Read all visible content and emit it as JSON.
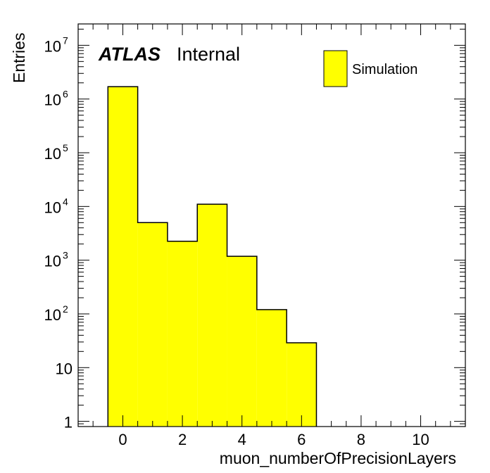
{
  "colors": {
    "fill": "#ffff00",
    "line": "#000000",
    "background": "#ffffff"
  },
  "label": {
    "experiment": "ATLAS",
    "status": "Internal"
  },
  "chart_data": {
    "type": "bar",
    "style": "histogram",
    "xlabel": "muon_numberOfPrecisionLayers",
    "ylabel": "Entries",
    "xlim": [
      -1.5,
      11.5
    ],
    "ylim": [
      0.8,
      25000000
    ],
    "ylog": true,
    "grid": false,
    "legend_position": "top-right",
    "x_ticks": [
      0,
      2,
      4,
      6,
      8,
      10
    ],
    "y_ticks": [
      {
        "value": 1,
        "label": "1"
      },
      {
        "value": 10,
        "label": "10"
      },
      {
        "value": 100,
        "label": "10",
        "exp": "2"
      },
      {
        "value": 1000,
        "label": "10",
        "exp": "3"
      },
      {
        "value": 10000,
        "label": "10",
        "exp": "4"
      },
      {
        "value": 100000,
        "label": "10",
        "exp": "5"
      },
      {
        "value": 1000000,
        "label": "10",
        "exp": "6"
      },
      {
        "value": 10000000,
        "label": "10",
        "exp": "7"
      }
    ],
    "series": [
      {
        "name": "Simulation",
        "bins": [
          {
            "x_low": -0.5,
            "x_high": 0.5,
            "value": 1700000
          },
          {
            "x_low": 0.5,
            "x_high": 1.5,
            "value": 5000
          },
          {
            "x_low": 1.5,
            "x_high": 2.5,
            "value": 2250
          },
          {
            "x_low": 2.5,
            "x_high": 3.5,
            "value": 11000
          },
          {
            "x_low": 3.5,
            "x_high": 4.5,
            "value": 1180
          },
          {
            "x_low": 4.5,
            "x_high": 5.5,
            "value": 120
          },
          {
            "x_low": 5.5,
            "x_high": 6.5,
            "value": 29
          }
        ]
      }
    ]
  }
}
